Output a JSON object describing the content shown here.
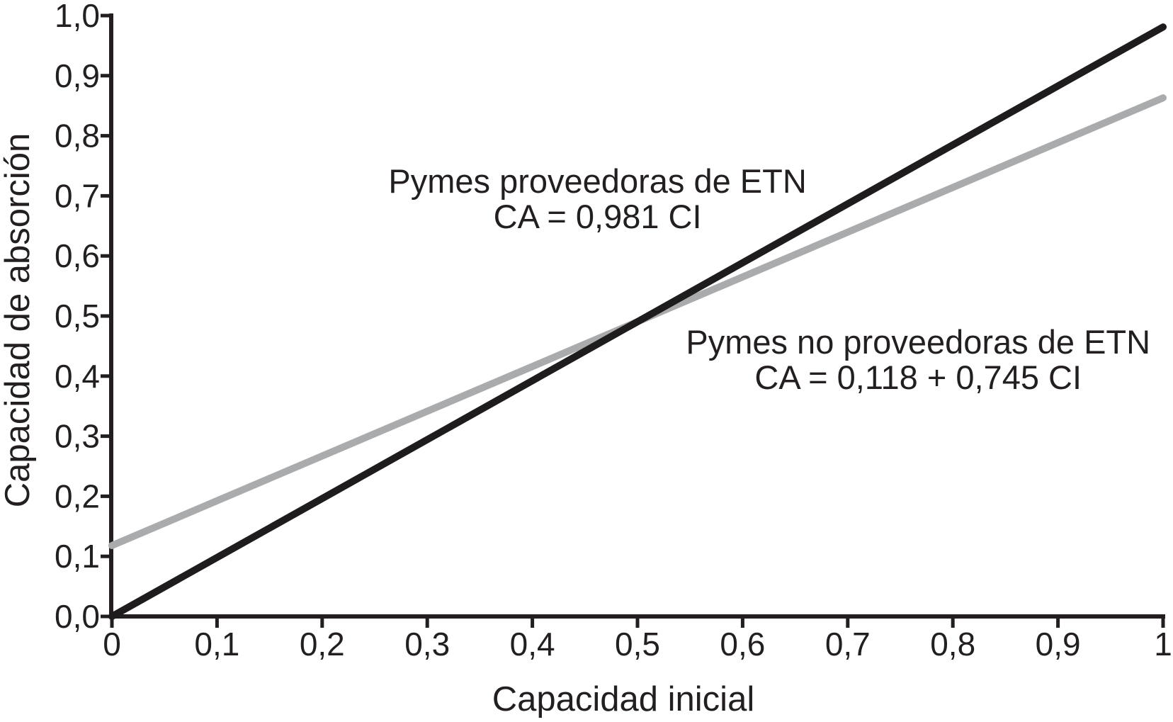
{
  "page": {
    "background": "#ffffff",
    "text_color": "#231f20"
  },
  "chart_data": {
    "type": "line",
    "title": "",
    "xlabel": "Capacidad inicial",
    "ylabel": "Capacidad de absorción",
    "xlim": [
      0,
      1
    ],
    "ylim": [
      0,
      1
    ],
    "grid": false,
    "legend_position": "none",
    "axis_color": "#231f20",
    "x_ticks": {
      "values": [
        0,
        0.1,
        0.2,
        0.3,
        0.4,
        0.5,
        0.6,
        0.7,
        0.8,
        0.9,
        1
      ],
      "labels": [
        "0",
        "0,1",
        "0,2",
        "0,3",
        "0,4",
        "0,5",
        "0,6",
        "0,7",
        "0,8",
        "0,9",
        "1"
      ]
    },
    "y_ticks": {
      "values": [
        0,
        0.1,
        0.2,
        0.3,
        0.4,
        0.5,
        0.6,
        0.7,
        0.8,
        0.9,
        1
      ],
      "labels": [
        "0,0",
        "0,1",
        "0,2",
        "0,3",
        "0,4",
        "0,5",
        "0,6",
        "0,7",
        "0,8",
        "0,9",
        "1,0"
      ]
    },
    "series": [
      {
        "name": "Pymes proveedoras de ETN",
        "equation": "CA = 0,981 CI",
        "slope": 0.981,
        "intercept": 0,
        "color": "#1f1c1d",
        "x": [
          0,
          1
        ],
        "y": [
          0,
          0.981
        ]
      },
      {
        "name": "Pymes no proveedoras de ETN",
        "equation": "CA = 0,118 + 0,745 CI",
        "slope": 0.745,
        "intercept": 0.118,
        "color": "#a9abad",
        "x": [
          0,
          1
        ],
        "y": [
          0.118,
          0.863
        ]
      }
    ],
    "annotations": [
      {
        "lines": [
          "Pymes proveedoras de ETN",
          "CA = 0,981 CI"
        ],
        "x": 0.462,
        "y": 0.696
      },
      {
        "lines": [
          "Pymes no proveedoras de ETN",
          "CA = 0,118 + 0,745 CI"
        ],
        "x": 0.767,
        "y": 0.428
      }
    ]
  }
}
